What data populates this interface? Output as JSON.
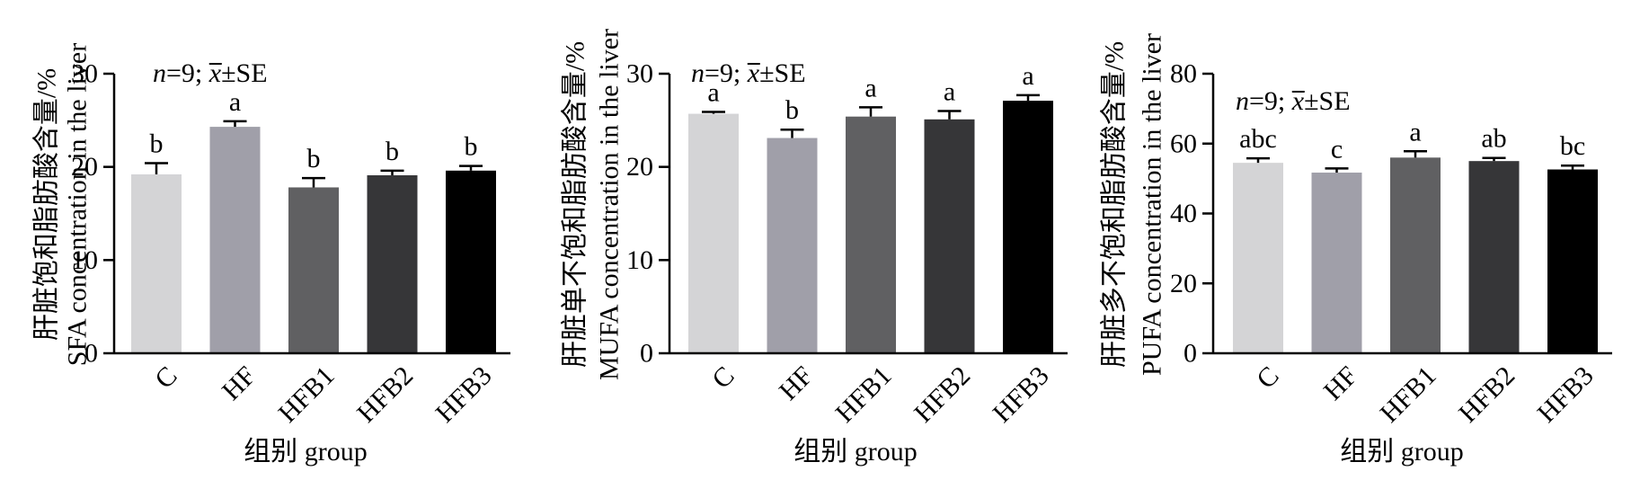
{
  "chart_data": [
    {
      "type": "bar",
      "categories": [
        "C",
        "HF",
        "HFB1",
        "HFB2",
        "HFB3"
      ],
      "values": [
        19.2,
        24.3,
        17.8,
        19.1,
        19.6
      ],
      "errors": [
        1.2,
        0.6,
        1.0,
        0.5,
        0.5
      ],
      "significance": [
        "b",
        "a",
        "b",
        "b",
        "b"
      ],
      "colors": [
        "#d4d4d6",
        "#a09fa9",
        "#606062",
        "#363638",
        "#000000"
      ],
      "annotation": {
        "n_part": "n",
        "eq_part": "=9; ",
        "x_part": "x",
        "pm_part": "±SE"
      },
      "ylabel_lines": [
        "肝脏饱和脂肪酸含量/%",
        "SFA concentration in the liver"
      ],
      "xlabel": "组别 group",
      "ylim": [
        0,
        30
      ],
      "yticks": [
        0,
        10,
        20,
        30
      ]
    },
    {
      "type": "bar",
      "categories": [
        "C",
        "HF",
        "HFB1",
        "HFB2",
        "HFB3"
      ],
      "values": [
        25.7,
        23.1,
        25.4,
        25.1,
        27.1
      ],
      "errors": [
        0.2,
        0.9,
        1.0,
        0.9,
        0.6
      ],
      "significance": [
        "a",
        "b",
        "a",
        "a",
        "a"
      ],
      "colors": [
        "#d4d4d6",
        "#a09fa9",
        "#606062",
        "#363638",
        "#000000"
      ],
      "annotation": {
        "n_part": "n",
        "eq_part": "=9; ",
        "x_part": "x",
        "pm_part": "±SE"
      },
      "ylabel_lines": [
        "肝脏单不饱和脂肪酸含量/%",
        "MUFA concentration in the liver"
      ],
      "xlabel": "组别 group",
      "ylim": [
        0,
        30
      ],
      "yticks": [
        0,
        10,
        20,
        30
      ]
    },
    {
      "type": "bar",
      "categories": [
        "C",
        "HF",
        "HFB1",
        "HFB2",
        "HFB3"
      ],
      "values": [
        54.5,
        51.7,
        56.0,
        55.0,
        52.6
      ],
      "errors": [
        1.3,
        1.2,
        1.8,
        0.9,
        1.1
      ],
      "significance": [
        "abc",
        "c",
        "a",
        "ab",
        "bc"
      ],
      "colors": [
        "#d4d4d6",
        "#a09fa9",
        "#606062",
        "#363638",
        "#000000"
      ],
      "annotation": {
        "n_part": "n",
        "eq_part": "=9; ",
        "x_part": "x",
        "pm_part": "±SE"
      },
      "ylabel_lines": [
        "肝脏多不饱和脂肪酸含量/%",
        "PUFA concentration in the liver"
      ],
      "xlabel": "组别 group",
      "ylim": [
        0,
        80
      ],
      "yticks": [
        0,
        20,
        40,
        60,
        80
      ]
    }
  ]
}
